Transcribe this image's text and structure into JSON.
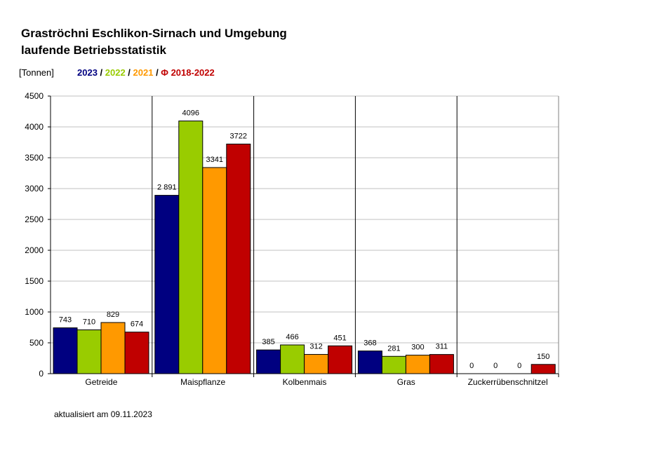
{
  "header": {
    "title_line1": "Graströchni Eschlikon-Sirnach und Umgebung",
    "title_line2": "laufende Betriebsstatistik",
    "unit": "[Tonnen]"
  },
  "legend": [
    {
      "label": "2023",
      "color": "#000080",
      "sep": " / "
    },
    {
      "label": "2022",
      "color": "#99cc00",
      "sep": "  /  "
    },
    {
      "label": "2021",
      "color": "#ff9900",
      "sep": " / "
    },
    {
      "label": "Φ 2018-2022",
      "color": "#c00000",
      "sep": ""
    }
  ],
  "footer": "aktualisiert am 09.11.2023",
  "chart_data": {
    "type": "bar",
    "categories": [
      "Getreide",
      "Maispflanze",
      "Kolbenmais",
      "Gras",
      "Zuckerrübenschnitzel"
    ],
    "series": [
      {
        "name": "2023",
        "color": "#000080",
        "values": [
          743,
          2891,
          385,
          368,
          0
        ],
        "labels": [
          "743",
          "2 891",
          "385",
          "368",
          "0"
        ]
      },
      {
        "name": "2022",
        "color": "#99cc00",
        "values": [
          710,
          4096,
          466,
          281,
          0
        ],
        "labels": [
          "710",
          "4096",
          "466",
          "281",
          "0"
        ]
      },
      {
        "name": "2021",
        "color": "#ff9900",
        "values": [
          829,
          3341,
          312,
          300,
          0
        ],
        "labels": [
          "829",
          "3341",
          "312",
          "300",
          "0"
        ]
      },
      {
        "name": "Φ 2018-2022",
        "color": "#c00000",
        "values": [
          674,
          3722,
          451,
          311,
          150
        ],
        "labels": [
          "674",
          "3722",
          "451",
          "311",
          "150"
        ]
      }
    ],
    "ylim": [
      0,
      4500
    ],
    "yticks": [
      0,
      500,
      1000,
      1500,
      2000,
      2500,
      3000,
      3500,
      4000,
      4500
    ],
    "grid": true,
    "category_separators": true
  }
}
